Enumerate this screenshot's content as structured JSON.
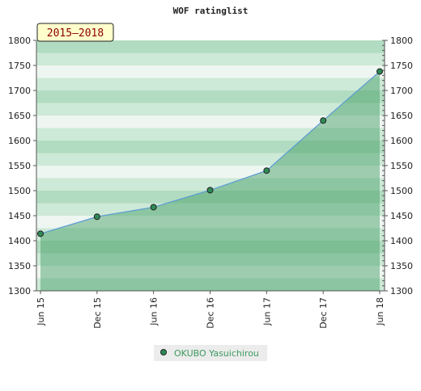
{
  "chart_data": {
    "type": "area",
    "title": "WOF ratinglist",
    "period_badge": "2015–2018",
    "categories": [
      "Jun 15",
      "Dec 15",
      "Jun 16",
      "Dec 16",
      "Jun 17",
      "Dec 17",
      "Jun 18"
    ],
    "series": [
      {
        "name": "OKUBO Yasuichirou",
        "values": [
          1414,
          1448,
          1467,
          1501,
          1540,
          1640,
          1738
        ],
        "color": "#3c9a5f"
      }
    ],
    "ylim": [
      1300,
      1800
    ],
    "yticks": [
      "1300",
      "1350",
      "1400",
      "1450",
      "1500",
      "1550",
      "1600",
      "1650",
      "1700",
      "1750",
      "1800"
    ],
    "y_axes": [
      "left",
      "right"
    ],
    "xlabel": "",
    "ylabel": "",
    "grid": true,
    "legend_position": "bottom",
    "colors": {
      "band_light": "#eef6f1",
      "band_mid": "#cde9d7",
      "band_dark": "#b2dcc1",
      "area_fill": "#3c9a5f",
      "line": "#5b9bd5",
      "marker": "#2e8b57",
      "badge_bg": "#ffffcc",
      "badge_text": "#8b0000",
      "legend_text": "#3c9a5f"
    }
  }
}
